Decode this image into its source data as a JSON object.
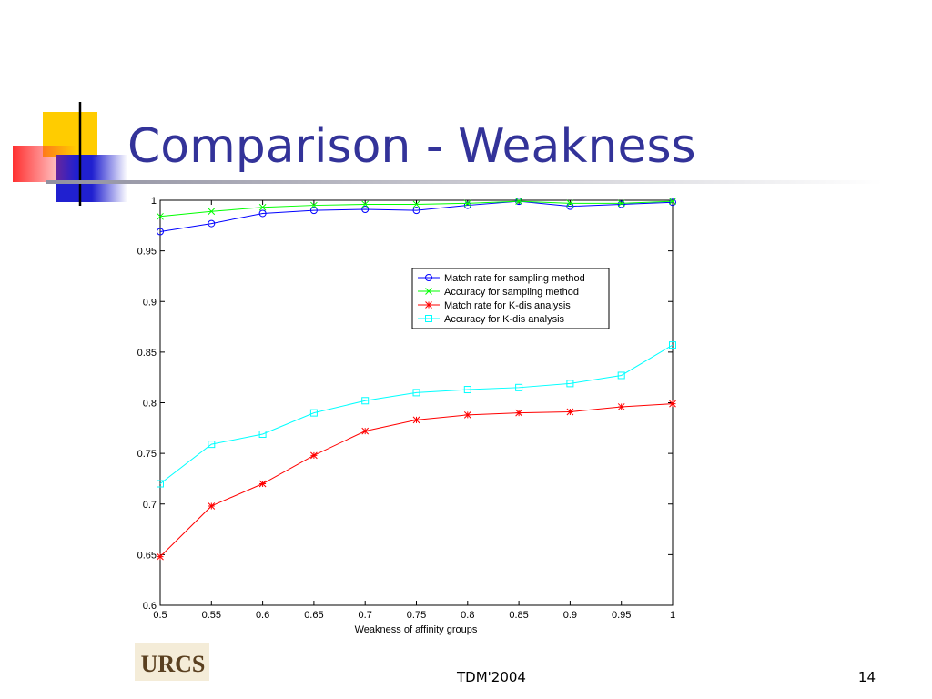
{
  "slide": {
    "title": "Comparison - Weakness",
    "footer": "TDM'2004",
    "page_number": "14",
    "logo_text": "URCS"
  },
  "chart_data": {
    "type": "line",
    "x_label": "Weakness of affinity groups",
    "x": [
      0.5,
      0.55,
      0.6,
      0.65,
      0.7,
      0.75,
      0.8,
      0.85,
      0.9,
      0.95,
      1
    ],
    "series": [
      {
        "name": "Match rate for sampling method",
        "color": "#0000ff",
        "marker": "circle",
        "values": [
          0.969,
          0.977,
          0.987,
          0.99,
          0.991,
          0.99,
          0.995,
          0.999,
          0.994,
          0.996,
          0.998
        ]
      },
      {
        "name": "Accuracy for sampling method",
        "color": "#00ff00",
        "marker": "x",
        "values": [
          0.984,
          0.989,
          0.993,
          0.995,
          0.996,
          0.996,
          0.997,
          0.999,
          0.997,
          0.997,
          0.999
        ]
      },
      {
        "name": "Match rate for K-dis analysis",
        "color": "#ff0000",
        "marker": "star",
        "values": [
          0.648,
          0.698,
          0.72,
          0.748,
          0.772,
          0.783,
          0.788,
          0.79,
          0.791,
          0.796,
          0.799
        ]
      },
      {
        "name": "Accuracy for K-dis analysis",
        "color": "#00ffff",
        "marker": "square",
        "values": [
          0.72,
          0.759,
          0.769,
          0.79,
          0.802,
          0.81,
          0.813,
          0.815,
          0.819,
          0.827,
          0.857
        ]
      }
    ],
    "xlim": [
      0.5,
      1
    ],
    "ylim": [
      0.6,
      1
    ],
    "xticks": [
      0.5,
      0.55,
      0.6,
      0.65,
      0.7,
      0.75,
      0.8,
      0.85,
      0.9,
      0.95,
      1
    ],
    "yticks": [
      0.6,
      0.65,
      0.7,
      0.75,
      0.8,
      0.85,
      0.9,
      0.95,
      1
    ],
    "legend": "upper right",
    "grid": false
  }
}
